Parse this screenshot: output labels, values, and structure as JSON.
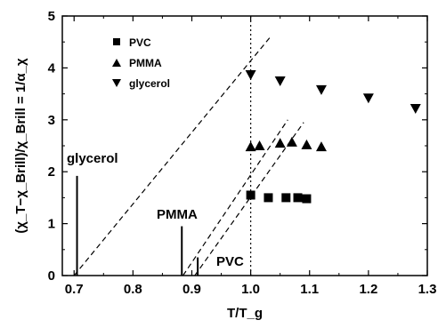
{
  "chart_data": {
    "type": "scatter",
    "xlabel": "T/T_g",
    "ylabel": "(χ_T−χ_Brill)/χ_Brill = 1/α_χ",
    "xlim": [
      0.68,
      1.3
    ],
    "ylim": [
      0,
      5
    ],
    "x_ticks": [
      "0.7",
      "0.8",
      "0.9",
      "1.0",
      "1.1",
      "1.2",
      "1.3"
    ],
    "x_tick_values": [
      0.7,
      0.8,
      0.9,
      1.0,
      1.1,
      1.2,
      1.3
    ],
    "y_ticks": [
      "0",
      "1",
      "2",
      "3",
      "4",
      "5"
    ],
    "y_tick_values": [
      0,
      1,
      2,
      3,
      4,
      5
    ],
    "legend_position": "top-left",
    "series": [
      {
        "name": "PVC",
        "marker": "square",
        "color": "#000000",
        "x": [
          1.0,
          1.03,
          1.06,
          1.08,
          1.095
        ],
        "y": [
          1.55,
          1.5,
          1.5,
          1.5,
          1.48
        ]
      },
      {
        "name": "PMMA",
        "marker": "triangle-up",
        "color": "#000000",
        "x": [
          1.0,
          1.015,
          1.05,
          1.07,
          1.095,
          1.12
        ],
        "y": [
          2.48,
          2.5,
          2.55,
          2.57,
          2.52,
          2.48
        ]
      },
      {
        "name": "glycerol",
        "marker": "triangle-down",
        "color": "#000000",
        "x": [
          1.0,
          1.05,
          1.12,
          1.2,
          1.28
        ],
        "y": [
          3.87,
          3.75,
          3.58,
          3.42,
          3.22
        ]
      }
    ],
    "reference_lines": [
      {
        "style": "dotted",
        "orientation": "vertical",
        "x": 1.0
      },
      {
        "style": "dashed",
        "points": [
          [
            0.7,
            0.0
          ],
          [
            1.035,
            4.62
          ]
        ]
      },
      {
        "style": "dashed",
        "points": [
          [
            0.885,
            0.0
          ],
          [
            1.063,
            3.0
          ]
        ]
      },
      {
        "style": "dashed",
        "points": [
          [
            0.905,
            0.0
          ],
          [
            1.09,
            2.95
          ]
        ]
      }
    ],
    "markers": [
      {
        "label": "glycerol",
        "x": 0.705,
        "y_top": 1.92
      },
      {
        "label": "PMMA",
        "x": 0.883,
        "y_top": 0.95
      },
      {
        "label": "PVC",
        "x": 0.91,
        "y_top": 0.35
      }
    ]
  }
}
